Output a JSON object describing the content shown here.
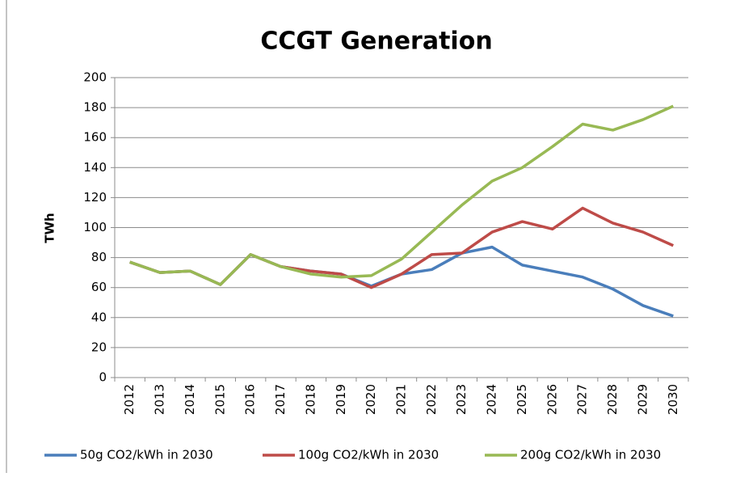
{
  "chart_data": {
    "type": "line",
    "title": "CCGT Generation",
    "y_label": "TWh",
    "categories": [
      "2012",
      "2013",
      "2014",
      "2015",
      "2016",
      "2017",
      "2018",
      "2019",
      "2020",
      "2021",
      "2022",
      "2023",
      "2024",
      "2025",
      "2026",
      "2027",
      "2028",
      "2029",
      "2030"
    ],
    "series": [
      {
        "name": "50g CO2/kWh in 2030",
        "color": "#4a7ebb",
        "values": [
          77,
          70,
          71,
          62,
          82,
          74,
          71,
          69,
          61,
          69,
          72,
          83,
          87,
          75,
          71,
          67,
          59,
          48,
          41
        ]
      },
      {
        "name": "100g CO2/kWh in 2030",
        "color": "#be4b48",
        "values": [
          77,
          70,
          71,
          62,
          82,
          74,
          71,
          69,
          60,
          69,
          82,
          83,
          97,
          104,
          99,
          113,
          103,
          97,
          88
        ]
      },
      {
        "name": "200g CO2/kWh in 2030",
        "color": "#98b954",
        "values": [
          77,
          70,
          71,
          62,
          82,
          74,
          69,
          67,
          68,
          79,
          97,
          115,
          131,
          140,
          154,
          169,
          165,
          172,
          181
        ]
      }
    ],
    "ylim": [
      0,
      200
    ],
    "yticks": [
      0,
      20,
      40,
      60,
      80,
      100,
      120,
      140,
      160,
      180,
      200
    ],
    "grid": true,
    "legend": "bottom"
  }
}
